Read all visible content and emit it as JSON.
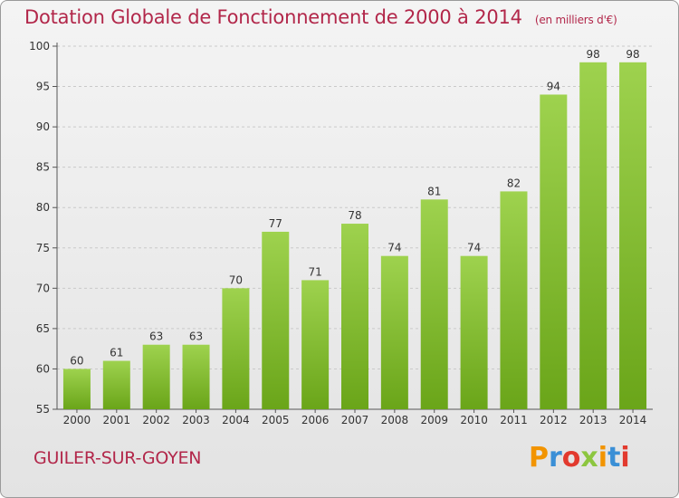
{
  "header": {
    "title": "Dotation Globale de Fonctionnement de 2000 à 2014",
    "unit": "(en milliers d'€)"
  },
  "footer": {
    "commune": "GUILER-SUR-GOYEN",
    "logo_text": "Proxiti",
    "logo_colors": [
      "#f29400",
      "#3a8fd6",
      "#e23a2e",
      "#8cc63f",
      "#f29400",
      "#3a8fd6",
      "#e23a2e"
    ]
  },
  "colors": {
    "title": "#b2274a",
    "bar_light": "#9ed24e",
    "bar_dark": "#6aa519"
  },
  "chart_data": {
    "type": "bar",
    "title": "Dotation Globale de Fonctionnement de 2000 à 2014",
    "subtitle": "(en milliers d'€)",
    "xlabel": "",
    "ylabel": "",
    "categories": [
      "2000",
      "2001",
      "2002",
      "2003",
      "2004",
      "2005",
      "2006",
      "2007",
      "2008",
      "2009",
      "2010",
      "2011",
      "2012",
      "2013",
      "2014"
    ],
    "values": [
      60,
      61,
      63,
      63,
      70,
      77,
      71,
      78,
      74,
      81,
      74,
      82,
      94,
      98,
      98
    ],
    "ylim": [
      55,
      100
    ],
    "yticks": [
      55,
      60,
      65,
      70,
      75,
      80,
      85,
      90,
      95,
      100
    ],
    "grid": true
  }
}
